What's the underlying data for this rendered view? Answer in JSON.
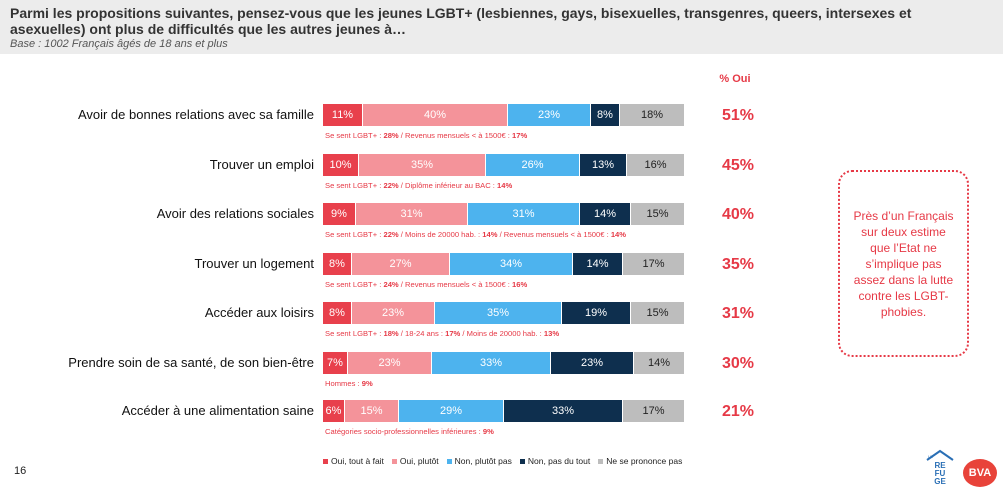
{
  "header": {
    "title": "Parmi les propositions suivantes, pensez-vous que les jeunes LGBT+ (lesbiennes, gays, bisexuelles, transgenres, queers, intersexes et asexuelles) ont plus de difficultés que les autres jeunes à…",
    "base": "Base : 1002 Français âgés de 18 ans et plus"
  },
  "pct_header": "% Oui",
  "colors": {
    "oui_tout_a_fait": "#e8404c",
    "oui_plutot": "#f4939a",
    "non_plutot_pas": "#4db3ee",
    "non_pas_du_tout": "#0e2f4e",
    "ne_se_prononce_pas": "#bdbdbd",
    "accent": "#e63946"
  },
  "chart_data": {
    "type": "bar",
    "orientation": "horizontal",
    "stacked": true,
    "categories": [
      "Avoir de bonnes relations avec sa famille",
      "Trouver un emploi",
      "Avoir des relations sociales",
      "Trouver un logement",
      "Accéder aux loisirs",
      "Prendre soin de sa santé, de son bien-être",
      "Accéder à une alimentation saine"
    ],
    "series": [
      {
        "name": "Oui, tout à fait",
        "values": [
          11,
          10,
          9,
          8,
          8,
          7,
          6
        ]
      },
      {
        "name": "Oui, plutôt",
        "values": [
          40,
          35,
          31,
          27,
          23,
          23,
          15
        ]
      },
      {
        "name": "Non, plutôt pas",
        "values": [
          23,
          26,
          31,
          34,
          35,
          33,
          29
        ]
      },
      {
        "name": "Non, pas du tout",
        "values": [
          8,
          13,
          14,
          14,
          19,
          23,
          33
        ]
      },
      {
        "name": "Ne se prononce pas",
        "values": [
          18,
          16,
          15,
          17,
          15,
          14,
          17
        ]
      }
    ],
    "pct_oui": [
      "51%",
      "45%",
      "40%",
      "35%",
      "31%",
      "30%",
      "21%"
    ],
    "xlim": [
      0,
      100
    ],
    "legend": "bottom"
  },
  "notes": [
    [
      {
        "t": "Se sent LGBT+ : "
      },
      {
        "t": "28%",
        "b": true
      },
      {
        "t": " / Revenus mensuels < à 1500€  : "
      },
      {
        "t": "17%",
        "b": true
      }
    ],
    [
      {
        "t": "Se sent LGBT+ : "
      },
      {
        "t": "22%",
        "b": true
      },
      {
        "t": " / Diplôme inférieur au BAC : "
      },
      {
        "t": "14%",
        "b": true
      }
    ],
    [
      {
        "t": "Se sent LGBT+ : "
      },
      {
        "t": "22%",
        "b": true
      },
      {
        "t": " / Moins de 20000 hab. : "
      },
      {
        "t": "14%",
        "b": true
      },
      {
        "t": " / Revenus mensuels < à 1500€  : "
      },
      {
        "t": "14%",
        "b": true
      }
    ],
    [
      {
        "t": "Se sent LGBT+ : "
      },
      {
        "t": "24%",
        "b": true
      },
      {
        "t": " / Revenus mensuels < à 1500€  : "
      },
      {
        "t": "16%",
        "b": true
      }
    ],
    [
      {
        "t": "Se sent LGBT+ : "
      },
      {
        "t": "18%",
        "b": true
      },
      {
        "t": " / 18-24 ans : "
      },
      {
        "t": "17%",
        "b": true
      },
      {
        "t": " / Moins de 20000 hab. : "
      },
      {
        "t": "13%",
        "b": true
      }
    ],
    [
      {
        "t": "Hommes : "
      },
      {
        "t": "9%",
        "b": true
      }
    ],
    [
      {
        "t": "Catégories socio-professionnelles inférieures : "
      },
      {
        "t": "9%",
        "b": true
      }
    ]
  ],
  "callout": "Près d’un Français sur deux estime que l’Etat ne s’implique pas assez dans la lutte contre les LGBT-phobies.",
  "page_number": "16",
  "logos": {
    "refuge": "LE REFUGE",
    "bva": "BVA"
  }
}
